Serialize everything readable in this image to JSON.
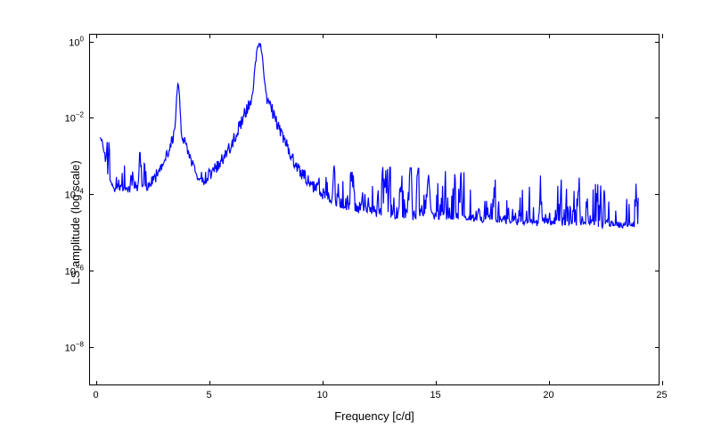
{
  "chart": {
    "type": "line",
    "xlabel": "Frequency [c/d]",
    "ylabel": "LS amplitude (log scale)",
    "label_fontsize": 13,
    "tick_fontsize": 11,
    "line_color": "#0000ff",
    "line_width": 1.2,
    "background_color": "#ffffff",
    "border_color": "#000000",
    "xlim": [
      -0.3,
      24.9
    ],
    "ylim_log10": [
      -9.0,
      0.2
    ],
    "yscale": "log",
    "grid": false,
    "xticks": [
      0,
      5,
      10,
      15,
      20,
      25
    ],
    "yticks_log10": [
      -8,
      -6,
      -4,
      -2,
      0
    ],
    "ytick_labels": [
      "10⁻⁸",
      "10⁻⁶",
      "10⁻⁴",
      "10⁻²",
      "10⁰"
    ],
    "peaks": [
      {
        "freq": 0.2,
        "log_amp": -2.6
      },
      {
        "freq": 3.6,
        "log_amp": -1.12
      },
      {
        "freq": 7.2,
        "log_amp": -0.02
      },
      {
        "freq": 14.7,
        "log_amp": -3.45
      }
    ],
    "noise_floor_log10": {
      "start": -4.0,
      "mid": -4.6,
      "end": -4.9
    },
    "noise_fluctuation_log10": 0.85,
    "deep_dips_log10": -8.2,
    "data_xrange": [
      0.15,
      24.0
    ],
    "n_points": 930
  }
}
